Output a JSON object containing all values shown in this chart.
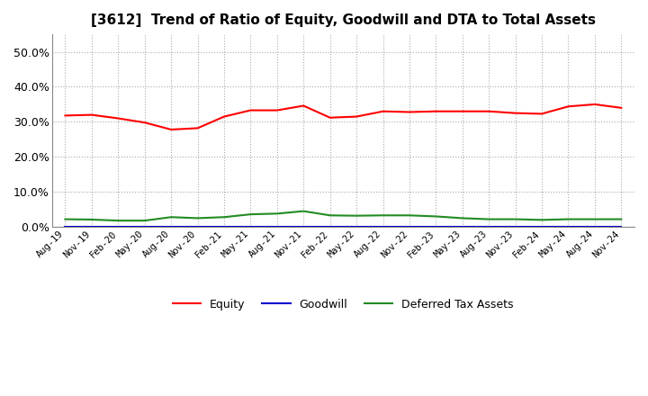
{
  "title": "[3612]  Trend of Ratio of Equity, Goodwill and DTA to Total Assets",
  "x_labels": [
    "Aug-19",
    "Nov-19",
    "Feb-20",
    "May-20",
    "Aug-20",
    "Nov-20",
    "Feb-21",
    "May-21",
    "Aug-21",
    "Nov-21",
    "Feb-22",
    "May-22",
    "Aug-22",
    "Nov-22",
    "Feb-23",
    "May-23",
    "Aug-23",
    "Nov-23",
    "Feb-24",
    "May-24",
    "Aug-24",
    "Nov-24"
  ],
  "equity": [
    0.318,
    0.32,
    0.31,
    0.298,
    0.278,
    0.282,
    0.315,
    0.333,
    0.333,
    0.346,
    0.312,
    0.315,
    0.33,
    0.328,
    0.33,
    0.33,
    0.33,
    0.325,
    0.323,
    0.344,
    0.35,
    0.34
  ],
  "goodwill": [
    0.0,
    0.0,
    0.0,
    0.0,
    0.0,
    0.0,
    0.0,
    0.0,
    0.0,
    0.0,
    0.0,
    0.0,
    0.0,
    0.0,
    0.0,
    0.0,
    0.0,
    0.0,
    0.0,
    0.0,
    0.0,
    0.0
  ],
  "dta": [
    0.022,
    0.021,
    0.018,
    0.018,
    0.028,
    0.025,
    0.028,
    0.036,
    0.038,
    0.045,
    0.033,
    0.032,
    0.033,
    0.033,
    0.03,
    0.025,
    0.022,
    0.022,
    0.02,
    0.022,
    0.022,
    0.022
  ],
  "equity_color": "#FF0000",
  "goodwill_color": "#0000CD",
  "dta_color": "#228B22",
  "ylim": [
    0.0,
    0.55
  ],
  "yticks": [
    0.0,
    0.1,
    0.2,
    0.3,
    0.4,
    0.5
  ],
  "background_color": "#FFFFFF",
  "grid_color": "#AAAAAA"
}
